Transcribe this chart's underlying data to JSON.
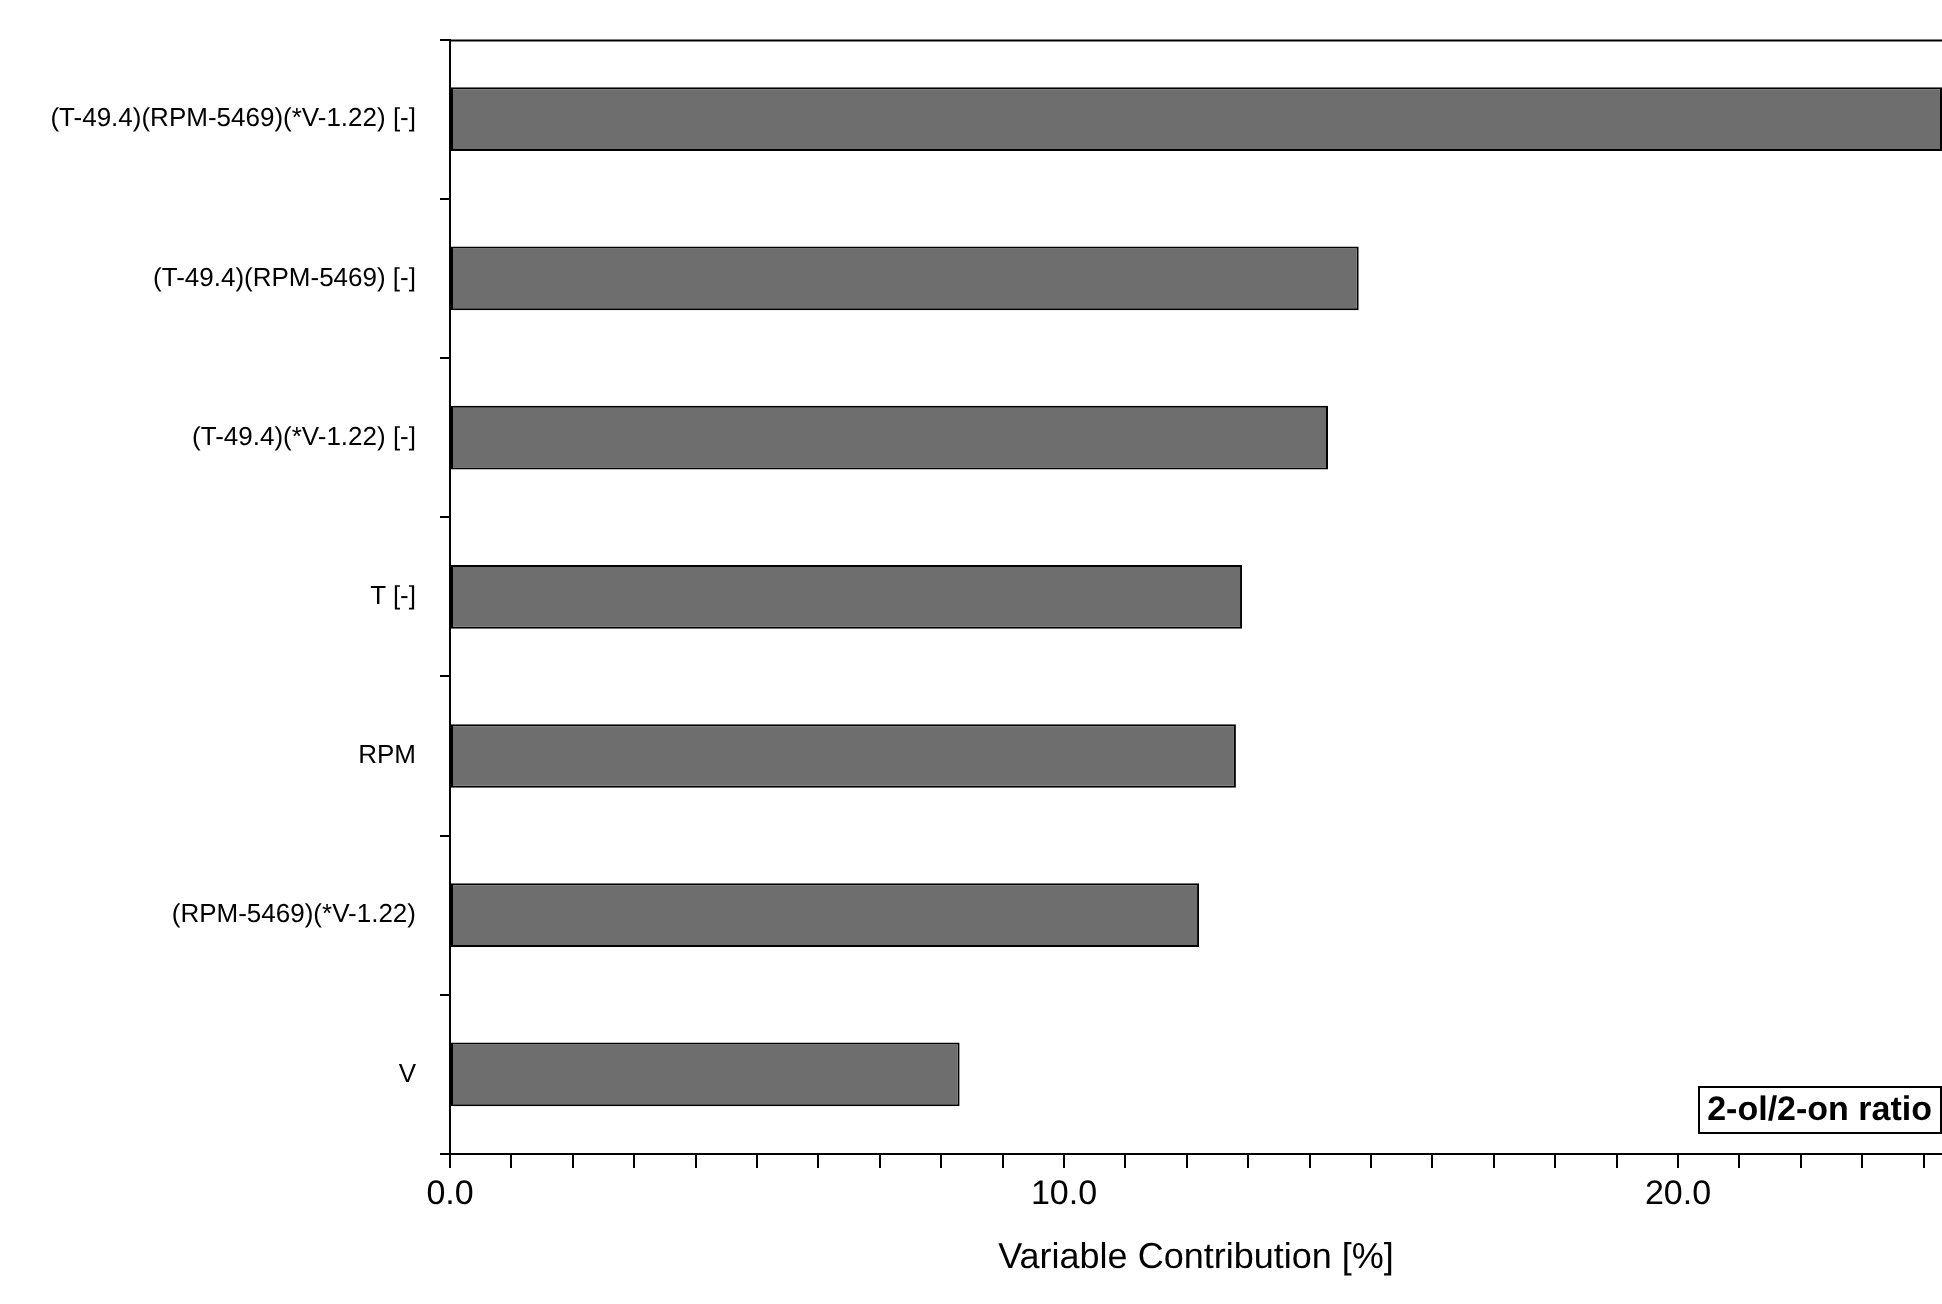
{
  "chart_data": {
    "type": "bar",
    "orientation": "horizontal",
    "categories": [
      "(T-49.4)(RPM-5469)(*V-1.22) [-]",
      "(T-49.4)(RPM-5469) [-]",
      "(T-49.4)(*V-1.22) [-]",
      "T [-]",
      "RPM",
      "(RPM-5469)(*V-1.22)",
      "V"
    ],
    "values": [
      24.3,
      14.8,
      14.3,
      12.9,
      12.8,
      12.2,
      8.3
    ],
    "color": "#6e6e6e",
    "xlabel": "Variable Contribution [%]",
    "xlim": [
      0,
      24.3
    ],
    "xticks": [
      {
        "value": 0,
        "label": "0.0"
      },
      {
        "value": 1,
        "label": null
      },
      {
        "value": 2,
        "label": null
      },
      {
        "value": 3,
        "label": null
      },
      {
        "value": 4,
        "label": null
      },
      {
        "value": 5,
        "label": null
      },
      {
        "value": 6,
        "label": null
      },
      {
        "value": 7,
        "label": null
      },
      {
        "value": 8,
        "label": null
      },
      {
        "value": 9,
        "label": null
      },
      {
        "value": 10,
        "label": "10.0"
      },
      {
        "value": 11,
        "label": null
      },
      {
        "value": 12,
        "label": null
      },
      {
        "value": 13,
        "label": null
      },
      {
        "value": 14,
        "label": null
      },
      {
        "value": 15,
        "label": null
      },
      {
        "value": 16,
        "label": null
      },
      {
        "value": 17,
        "label": null
      },
      {
        "value": 18,
        "label": null
      },
      {
        "value": 19,
        "label": null
      },
      {
        "value": 20,
        "label": "20.0"
      },
      {
        "value": 21,
        "label": null
      },
      {
        "value": 22,
        "label": null
      },
      {
        "value": 23,
        "label": null
      },
      {
        "value": 24,
        "label": null
      }
    ],
    "annotations": [
      "2-ol/2-on ratio"
    ],
    "grid": false,
    "legend": false
  }
}
